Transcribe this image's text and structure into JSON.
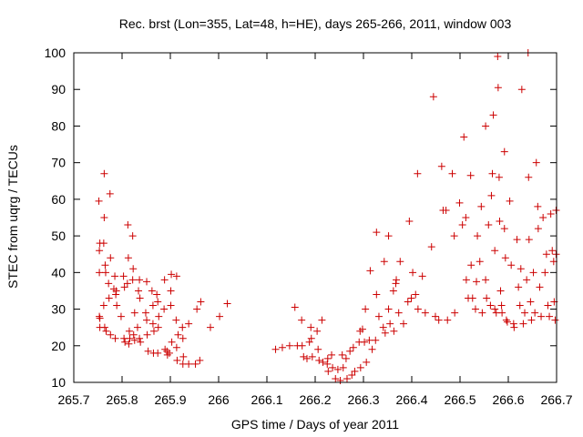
{
  "chart_data": {
    "type": "scatter",
    "title": "Rec. brst (Lon=355, Lat=48, h=HE), days 265-266, 2011, window 003",
    "xlabel": "GPS time / Days of year 2011",
    "ylabel": "STEC from uqrg / TECUs",
    "xlim": [
      265.7,
      266.7
    ],
    "ylim": [
      10,
      100
    ],
    "xticks": [
      265.7,
      265.8,
      265.9,
      266,
      266.1,
      266.2,
      266.3,
      266.4,
      266.5,
      266.6,
      266.7
    ],
    "xtick_labels": [
      "265.7",
      "265.8",
      "265.9",
      "266",
      "266.1",
      "266.2",
      "266.3",
      "266.4",
      "266.5",
      "266.6",
      "266.7"
    ],
    "yticks": [
      10,
      20,
      30,
      40,
      50,
      60,
      70,
      80,
      90,
      100
    ],
    "ytick_labels": [
      "10",
      "20",
      "30",
      "40",
      "50",
      "60",
      "70",
      "80",
      "90",
      "100"
    ],
    "marker": "plus",
    "marker_color": "#cc0000",
    "grid": false,
    "legend": "none",
    "series": [
      {
        "points": [
          [
            265.752,
            59.5
          ],
          [
            265.754,
            48
          ],
          [
            265.753,
            46
          ],
          [
            265.753,
            40
          ],
          [
            265.753,
            28
          ],
          [
            265.754,
            27.5
          ],
          [
            265.754,
            25
          ],
          [
            265.763,
            67
          ],
          [
            265.763,
            55
          ],
          [
            265.762,
            48
          ],
          [
            265.765,
            42
          ],
          [
            265.766,
            40
          ],
          [
            265.762,
            31
          ],
          [
            265.764,
            25
          ],
          [
            265.767,
            24
          ],
          [
            265.775,
            61.5
          ],
          [
            265.776,
            44
          ],
          [
            265.772,
            37
          ],
          [
            265.773,
            33
          ],
          [
            265.776,
            23
          ],
          [
            265.785,
            39
          ],
          [
            265.783,
            35.5
          ],
          [
            265.788,
            35
          ],
          [
            265.787,
            34
          ],
          [
            265.789,
            31
          ],
          [
            265.786,
            22
          ],
          [
            265.803,
            39
          ],
          [
            265.805,
            36
          ],
          [
            265.798,
            28
          ],
          [
            265.804,
            22
          ],
          [
            265.806,
            21
          ],
          [
            265.812,
            53
          ],
          [
            265.813,
            44
          ],
          [
            265.811,
            37
          ],
          [
            265.815,
            24
          ],
          [
            265.816,
            22
          ],
          [
            265.814,
            20.5
          ],
          [
            265.822,
            50
          ],
          [
            265.823,
            41
          ],
          [
            265.822,
            38
          ],
          [
            265.826,
            29
          ],
          [
            265.824,
            23
          ],
          [
            265.826,
            21.5
          ],
          [
            265.836,
            38
          ],
          [
            265.834,
            35
          ],
          [
            265.837,
            33
          ],
          [
            265.832,
            25
          ],
          [
            265.836,
            22
          ],
          [
            265.838,
            21
          ],
          [
            265.851,
            37.5
          ],
          [
            265.849,
            29
          ],
          [
            265.851,
            27
          ],
          [
            265.852,
            23
          ],
          [
            265.854,
            18.5
          ],
          [
            265.862,
            35
          ],
          [
            265.864,
            31
          ],
          [
            265.864,
            26
          ],
          [
            265.866,
            24
          ],
          [
            265.865,
            18
          ],
          [
            265.872,
            34
          ],
          [
            265.874,
            32
          ],
          [
            265.876,
            28
          ],
          [
            265.875,
            25
          ],
          [
            265.874,
            18
          ],
          [
            265.888,
            38
          ],
          [
            265.887,
            30
          ],
          [
            265.889,
            19
          ],
          [
            265.893,
            18.5
          ],
          [
            265.894,
            17.5
          ],
          [
            265.902,
            39.5
          ],
          [
            265.901,
            35
          ],
          [
            265.901,
            31
          ],
          [
            265.903,
            21
          ],
          [
            265.898,
            18
          ],
          [
            265.913,
            39
          ],
          [
            265.912,
            27
          ],
          [
            265.916,
            23
          ],
          [
            265.913,
            19.5
          ],
          [
            265.914,
            16
          ],
          [
            265.925,
            25
          ],
          [
            265.926,
            22
          ],
          [
            265.927,
            17
          ],
          [
            265.926,
            15
          ],
          [
            265.938,
            26
          ],
          [
            265.938,
            15
          ],
          [
            265.952,
            15
          ],
          [
            265.955,
            30
          ],
          [
            265.961,
            16
          ],
          [
            265.963,
            32
          ],
          [
            265.983,
            25
          ],
          [
            266.002,
            28
          ],
          [
            266.018,
            31.5
          ],
          [
            266.118,
            19
          ],
          [
            266.132,
            19.5
          ],
          [
            266.147,
            20
          ],
          [
            266.158,
            30.5
          ],
          [
            266.163,
            20
          ],
          [
            266.172,
            27
          ],
          [
            266.173,
            20
          ],
          [
            266.176,
            17
          ],
          [
            266.183,
            16.5
          ],
          [
            266.191,
            25
          ],
          [
            266.192,
            22
          ],
          [
            266.188,
            21
          ],
          [
            266.194,
            17
          ],
          [
            266.204,
            24
          ],
          [
            266.206,
            19
          ],
          [
            266.208,
            16
          ],
          [
            266.214,
            27
          ],
          [
            266.216,
            15.5
          ],
          [
            266.225,
            15
          ],
          [
            266.227,
            13
          ],
          [
            266.226,
            16.5
          ],
          [
            266.234,
            17.5
          ],
          [
            266.236,
            14
          ],
          [
            266.242,
            11
          ],
          [
            266.247,
            13.5
          ],
          [
            266.252,
            10.5
          ],
          [
            266.256,
            17.5
          ],
          [
            266.258,
            14
          ],
          [
            266.264,
            16.5
          ],
          [
            266.266,
            11
          ],
          [
            266.272,
            18.5
          ],
          [
            266.276,
            12
          ],
          [
            266.279,
            19.5
          ],
          [
            266.282,
            13
          ],
          [
            266.291,
            21
          ],
          [
            266.293,
            24
          ],
          [
            266.294,
            14
          ],
          [
            266.298,
            24.5
          ],
          [
            266.302,
            21
          ],
          [
            266.304,
            30
          ],
          [
            266.306,
            15.5
          ],
          [
            266.312,
            21.5
          ],
          [
            266.314,
            40.5
          ],
          [
            266.318,
            19
          ],
          [
            266.325,
            21.5
          ],
          [
            266.327,
            34
          ],
          [
            266.327,
            51
          ],
          [
            266.332,
            28
          ],
          [
            266.341,
            25
          ],
          [
            266.343,
            43
          ],
          [
            266.345,
            23.5
          ],
          [
            266.352,
            50
          ],
          [
            266.352,
            30
          ],
          [
            266.355,
            26
          ],
          [
            266.362,
            35
          ],
          [
            266.363,
            24
          ],
          [
            266.367,
            37
          ],
          [
            266.368,
            38
          ],
          [
            266.373,
            29
          ],
          [
            266.376,
            43
          ],
          [
            266.383,
            26
          ],
          [
            266.392,
            32
          ],
          [
            266.395,
            54
          ],
          [
            266.399,
            33
          ],
          [
            266.402,
            40
          ],
          [
            266.408,
            34
          ],
          [
            266.412,
            67
          ],
          [
            266.413,
            30
          ],
          [
            266.422,
            39
          ],
          [
            266.428,
            29
          ],
          [
            266.441,
            47
          ],
          [
            266.445,
            88
          ],
          [
            266.449,
            28
          ],
          [
            266.456,
            27
          ],
          [
            266.462,
            69
          ],
          [
            266.465,
            57
          ],
          [
            266.471,
            57
          ],
          [
            266.474,
            27
          ],
          [
            266.484,
            67
          ],
          [
            266.489,
            29
          ],
          [
            266.488,
            50
          ],
          [
            266.499,
            59
          ],
          [
            266.505,
            53
          ],
          [
            266.508,
            77
          ],
          [
            266.512,
            55
          ],
          [
            266.513,
            38
          ],
          [
            266.517,
            33
          ],
          [
            266.522,
            66.5
          ],
          [
            266.523,
            42
          ],
          [
            266.526,
            33
          ],
          [
            266.532,
            30
          ],
          [
            266.534,
            37.5
          ],
          [
            266.536,
            50
          ],
          [
            266.541,
            43
          ],
          [
            266.544,
            58
          ],
          [
            266.546,
            29
          ],
          [
            266.553,
            80
          ],
          [
            266.553,
            38
          ],
          [
            266.555,
            33
          ],
          [
            266.559,
            53
          ],
          [
            266.563,
            31
          ],
          [
            266.565,
            61
          ],
          [
            266.567,
            67
          ],
          [
            266.569,
            83
          ],
          [
            266.572,
            30
          ],
          [
            266.572,
            46
          ],
          [
            266.575,
            29
          ],
          [
            266.578,
            99
          ],
          [
            266.579,
            90.5
          ],
          [
            266.581,
            66
          ],
          [
            266.582,
            54
          ],
          [
            266.584,
            35
          ],
          [
            266.586,
            31
          ],
          [
            266.587,
            29
          ],
          [
            266.592,
            73
          ],
          [
            266.592,
            52
          ],
          [
            266.594,
            44
          ],
          [
            266.596,
            27
          ],
          [
            266.598,
            26.5
          ],
          [
            266.603,
            59.5
          ],
          [
            266.606,
            42
          ],
          [
            266.611,
            26
          ],
          [
            266.612,
            25
          ],
          [
            266.618,
            49
          ],
          [
            266.621,
            36
          ],
          [
            266.624,
            31
          ],
          [
            266.626,
            41
          ],
          [
            266.628,
            90
          ],
          [
            266.631,
            26
          ],
          [
            266.634,
            29
          ],
          [
            266.638,
            38
          ],
          [
            266.641,
            100
          ],
          [
            266.642,
            66
          ],
          [
            266.643,
            49
          ],
          [
            266.646,
            32
          ],
          [
            266.648,
            27
          ],
          [
            266.652,
            40
          ],
          [
            266.655,
            29
          ],
          [
            266.658,
            70
          ],
          [
            266.661,
            58
          ],
          [
            266.662,
            52
          ],
          [
            266.665,
            36
          ],
          [
            266.668,
            28
          ],
          [
            266.672,
            55
          ],
          [
            266.676,
            40
          ],
          [
            266.679,
            45
          ],
          [
            266.682,
            31
          ],
          [
            266.685,
            28
          ],
          [
            266.688,
            56
          ],
          [
            266.691,
            46
          ],
          [
            266.694,
            43
          ],
          [
            266.695,
            32
          ],
          [
            266.697,
            27
          ],
          [
            266.699,
            57
          ],
          [
            266.699,
            45
          ]
        ]
      }
    ]
  }
}
